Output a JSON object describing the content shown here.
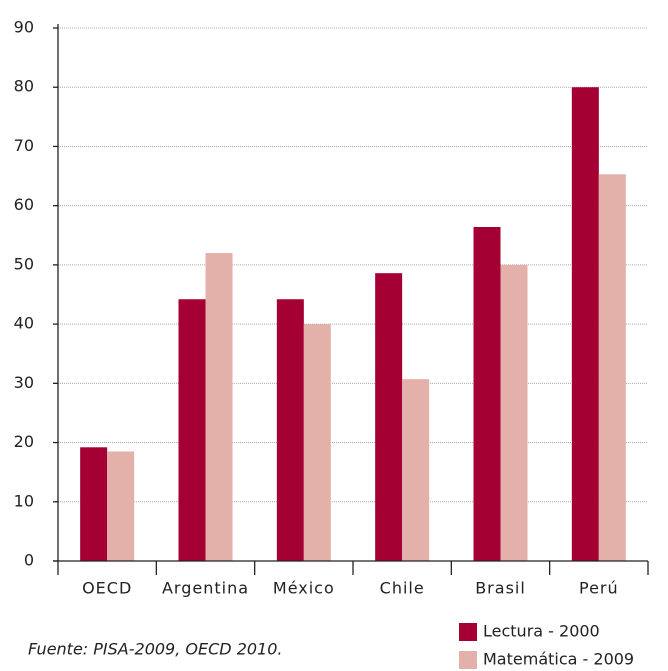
{
  "chart_data": {
    "type": "bar",
    "categories": [
      "OECD",
      "Argentina",
      "México",
      "Chile",
      "Brasil",
      "Perú"
    ],
    "series": [
      {
        "name": "Lectura - 2000",
        "color": "#a50034",
        "values": [
          19.2,
          44.2,
          44.2,
          48.6,
          56.4,
          80
        ]
      },
      {
        "name": "Matemática - 2009",
        "color": "#e3b0aa",
        "values": [
          18.5,
          52,
          40,
          30.7,
          50,
          65.3
        ]
      }
    ],
    "ylim": [
      0,
      90
    ],
    "yticks": [
      0,
      10,
      20,
      30,
      40,
      50,
      60,
      70,
      80,
      90
    ],
    "grid": true,
    "annotations": [
      "Fuente: PISA-2009, OECD 2010."
    ]
  }
}
